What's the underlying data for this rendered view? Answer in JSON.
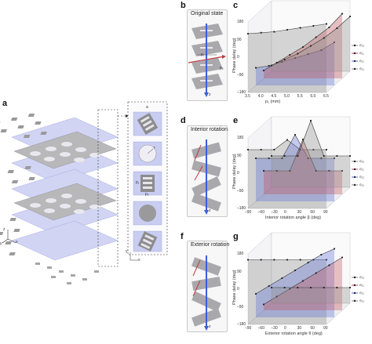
{
  "panels": {
    "a": {
      "letter": "a",
      "axes": {
        "x": "x",
        "y": "y",
        "z": "z"
      },
      "inset_axes": {
        "x": "x",
        "y": "y"
      }
    },
    "b": {
      "letter": "b",
      "title": "Original state",
      "labels": {
        "p1": "p₁",
        "p2": "p₂",
        "z": "z"
      }
    },
    "c": {
      "letter": "c"
    },
    "d": {
      "letter": "d",
      "title": "Interior rotation",
      "labels": {
        "z": "z"
      }
    },
    "e": {
      "letter": "e"
    },
    "f": {
      "letter": "f",
      "title": "Exterior rotation",
      "labels": {
        "z": "z"
      }
    },
    "g": {
      "letter": "g"
    }
  },
  "inset_labels": {
    "a": "a",
    "r": "r",
    "p1": "p₁",
    "p2": "p₂"
  },
  "colors": {
    "gray": "#8c8c8c",
    "blue": "#5b6fd6",
    "red": "#c0505a",
    "layer": "#c9cdf2"
  },
  "chart_data": [
    {
      "id": "c",
      "type": "line",
      "xlabel": "p₁ (mm)",
      "ylabel": "Phase delay (deg)",
      "x": [
        3.5,
        4.0,
        4.5,
        5.0,
        5.5,
        6.0,
        6.5
      ],
      "x_ticks": [
        "3.5",
        "4.0",
        "4.5",
        "5.0",
        "5.5",
        "6.0",
        "6.5"
      ],
      "y_ticks": [
        "180",
        "90",
        "0",
        "–90",
        "–180"
      ],
      "ylim": [
        -180,
        180
      ],
      "series": [
        {
          "name": "σ₂₂",
          "color": "#8c8c8c",
          "values": [
            -150,
            -120,
            -90,
            -50,
            -10,
            40,
            100
          ]
        },
        {
          "name": "σ₁₁",
          "color": "#c0505a",
          "values": [
            -140,
            -100,
            -60,
            -20,
            30,
            80,
            150
          ]
        },
        {
          "name": "σ₁₂",
          "color": "#5b6fd6",
          "values": [
            -90,
            -80,
            -60,
            -40,
            -20,
            0,
            40
          ]
        },
        {
          "name": "σ₂₁",
          "color": "#8c8c8c",
          "values": [
            120,
            125,
            130,
            140,
            150,
            160,
            170
          ]
        }
      ]
    },
    {
      "id": "e",
      "type": "line",
      "xlabel": "Interior rotation angle β (deg)",
      "ylabel": "Phase delay (deg)",
      "x": [
        -90,
        -60,
        -30,
        0,
        30,
        60,
        90
      ],
      "x_ticks": [
        "–90",
        "–60",
        "–30",
        "0",
        "30",
        "60",
        "90"
      ],
      "y_ticks": [
        "180",
        "90",
        "0",
        "–90",
        "–180"
      ],
      "ylim": [
        -180,
        180
      ],
      "series": [
        {
          "name": "σ₂₂",
          "color": "#8c8c8c",
          "values": [
            -20,
            -20,
            -20,
            160,
            -20,
            -20,
            -20
          ]
        },
        {
          "name": "σ₁₁",
          "color": "#c0505a",
          "values": [
            -60,
            -60,
            -60,
            100,
            -60,
            -60,
            -60
          ]
        },
        {
          "name": "σ₁₂",
          "color": "#5b6fd6",
          "values": [
            40,
            40,
            40,
            160,
            40,
            40,
            40
          ]
        },
        {
          "name": "σ₂₁",
          "color": "#8c8c8c",
          "values": [
            120,
            120,
            120,
            170,
            120,
            120,
            120
          ]
        }
      ]
    },
    {
      "id": "g",
      "type": "line",
      "xlabel": "Exterior rotation angle θ (deg)",
      "ylabel": "Phase delay (deg)",
      "x": [
        -90,
        -60,
        -30,
        0,
        30,
        60,
        90
      ],
      "x_ticks": [
        "–90",
        "–60",
        "–30",
        "0",
        "30",
        "60",
        "90"
      ],
      "y_ticks": [
        "180",
        "90",
        "0",
        "–90",
        "–180"
      ],
      "ylim": [
        -180,
        180
      ],
      "series": [
        {
          "name": "σ₂₂",
          "color": "#8c8c8c",
          "values": [
            -100,
            -100,
            -100,
            -100,
            -100,
            -100,
            -100
          ]
        },
        {
          "name": "σ₁₁",
          "color": "#c0505a",
          "values": [
            -150,
            -110,
            -70,
            -30,
            10,
            50,
            90
          ]
        },
        {
          "name": "σ₁₂",
          "color": "#5b6fd6",
          "values": [
            -60,
            -20,
            20,
            60,
            100,
            140,
            170
          ]
        },
        {
          "name": "σ₂₁",
          "color": "#8c8c8c",
          "values": [
            150,
            150,
            150,
            150,
            150,
            150,
            150
          ]
        }
      ]
    }
  ]
}
